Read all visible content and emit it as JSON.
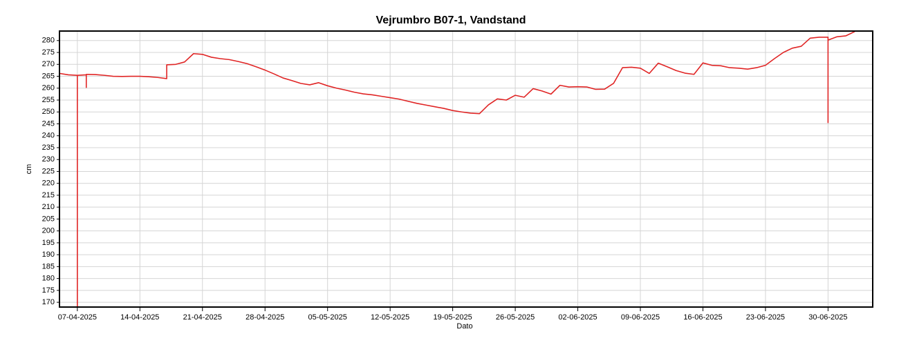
{
  "chart_data": {
    "type": "line",
    "title": "Vejrumbro B07-1, Vandstand",
    "x_label": "Dato",
    "y_label": "cm",
    "x": [
      "2025-04-05",
      "2025-04-06",
      "2025-04-07",
      "2025-04-07",
      "2025-04-07",
      "2025-04-08",
      "2025-04-08",
      "2025-04-08",
      "2025-04-09",
      "2025-04-10",
      "2025-04-11",
      "2025-04-12",
      "2025-04-13",
      "2025-04-14",
      "2025-04-15",
      "2025-04-16",
      "2025-04-17",
      "2025-04-17",
      "2025-04-18",
      "2025-04-19",
      "2025-04-20",
      "2025-04-21",
      "2025-04-22",
      "2025-04-23",
      "2025-04-24",
      "2025-04-25",
      "2025-04-26",
      "2025-04-27",
      "2025-04-28",
      "2025-04-29",
      "2025-04-30",
      "2025-05-01",
      "2025-05-02",
      "2025-05-03",
      "2025-05-04",
      "2025-05-05",
      "2025-05-06",
      "2025-05-07",
      "2025-05-08",
      "2025-05-09",
      "2025-05-10",
      "2025-05-11",
      "2025-05-12",
      "2025-05-13",
      "2025-05-14",
      "2025-05-15",
      "2025-05-16",
      "2025-05-17",
      "2025-05-18",
      "2025-05-19",
      "2025-05-20",
      "2025-05-21",
      "2025-05-22",
      "2025-05-23",
      "2025-05-24",
      "2025-05-25",
      "2025-05-26",
      "2025-05-27",
      "2025-05-28",
      "2025-05-29",
      "2025-05-30",
      "2025-05-31",
      "2025-06-01",
      "2025-06-02",
      "2025-06-03",
      "2025-06-04",
      "2025-06-05",
      "2025-06-06",
      "2025-06-07",
      "2025-06-08",
      "2025-06-09",
      "2025-06-10",
      "2025-06-11",
      "2025-06-12",
      "2025-06-13",
      "2025-06-14",
      "2025-06-15",
      "2025-06-16",
      "2025-06-17",
      "2025-06-18",
      "2025-06-19",
      "2025-06-20",
      "2025-06-21",
      "2025-06-22",
      "2025-06-23",
      "2025-06-24",
      "2025-06-25",
      "2025-06-26",
      "2025-06-27",
      "2025-06-28",
      "2025-06-29",
      "2025-06-30",
      "2025-06-30",
      "2025-06-30",
      "2025-07-01",
      "2025-07-02",
      "2025-07-03"
    ],
    "series": [
      {
        "color": "#e02424",
        "values": [
          266.2,
          265.6,
          265.4,
          168,
          265.4,
          265.6,
          260.3,
          265.8,
          265.7,
          265.4,
          265.0,
          264.9,
          265.0,
          265.0,
          264.8,
          264.5,
          264.0,
          269.8,
          270.0,
          271.0,
          274.5,
          274.2,
          273.0,
          272.4,
          272.0,
          271.2,
          270.3,
          269.0,
          267.6,
          266.0,
          264.3,
          263.2,
          262.0,
          261.4,
          262.3,
          261.0,
          260.0,
          259.2,
          258.3,
          257.6,
          257.2,
          256.6,
          256.0,
          255.4,
          254.5,
          253.6,
          252.9,
          252.2,
          251.5,
          250.6,
          250.0,
          249.5,
          249.3,
          253.0,
          255.5,
          255.0,
          257.0,
          256.2,
          259.8,
          258.8,
          257.5,
          261.2,
          260.5,
          260.6,
          260.5,
          259.5,
          259.6,
          262.0,
          268.6,
          268.8,
          268.4,
          266.2,
          270.5,
          269.0,
          267.4,
          266.3,
          265.8,
          270.6,
          269.6,
          269.4,
          268.6,
          268.4,
          268.0,
          268.6,
          269.6,
          272.4,
          275.0,
          276.8,
          277.6,
          281.0,
          281.4,
          281.4,
          245.5,
          280.2,
          281.6,
          282.0,
          283.8
        ]
      }
    ],
    "xlim": [
      "2025-04-05",
      "2025-07-05"
    ],
    "xticks": [
      {
        "value": "2025-04-07",
        "label": "07-04-2025"
      },
      {
        "value": "2025-04-14",
        "label": "14-04-2025"
      },
      {
        "value": "2025-04-21",
        "label": "21-04-2025"
      },
      {
        "value": "2025-04-28",
        "label": "28-04-2025"
      },
      {
        "value": "2025-05-05",
        "label": "05-05-2025"
      },
      {
        "value": "2025-05-12",
        "label": "12-05-2025"
      },
      {
        "value": "2025-05-19",
        "label": "19-05-2025"
      },
      {
        "value": "2025-05-26",
        "label": "26-05-2025"
      },
      {
        "value": "2025-06-02",
        "label": "02-06-2025"
      },
      {
        "value": "2025-06-09",
        "label": "09-06-2025"
      },
      {
        "value": "2025-06-16",
        "label": "16-06-2025"
      },
      {
        "value": "2025-06-23",
        "label": "23-06-2025"
      },
      {
        "value": "2025-06-30",
        "label": "30-06-2025"
      }
    ],
    "ylim": [
      168,
      284
    ],
    "yticks": [
      170,
      175,
      180,
      185,
      190,
      195,
      200,
      205,
      210,
      215,
      220,
      225,
      230,
      235,
      240,
      245,
      250,
      255,
      260,
      265,
      270,
      275,
      280
    ],
    "grid": true
  }
}
